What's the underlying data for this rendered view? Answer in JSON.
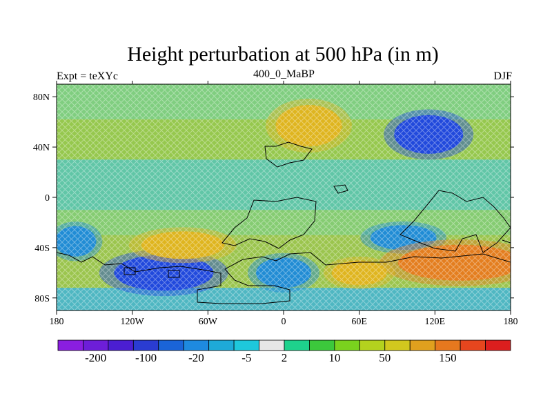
{
  "chart_data": {
    "type": "heatmap",
    "title": "Height perturbation at 500 hPa (in m)",
    "left_string": "Expt = teXYc",
    "center_string": "400_0_MaBP",
    "right_string": "DJF",
    "x_ticks": [
      "180",
      "120W",
      "60W",
      "0",
      "60E",
      "120E",
      "180"
    ],
    "x_tick_values": [
      -180,
      -120,
      -60,
      0,
      60,
      120,
      180
    ],
    "y_ticks": [
      "80N",
      "40N",
      "0",
      "40S",
      "80S"
    ],
    "y_tick_values": [
      80,
      40,
      0,
      -40,
      -80
    ],
    "xlim": [
      -180,
      180
    ],
    "ylim": [
      -90,
      90
    ],
    "colorbar": {
      "labels": [
        "-200",
        "-100",
        "-20",
        "-5",
        "2",
        "10",
        "50",
        "150"
      ],
      "colors": [
        "#8a1ee0",
        "#6d1ed8",
        "#4b1ed2",
        "#2a3cd2",
        "#1a64d8",
        "#1e8ae0",
        "#1eaad8",
        "#1ec8dc",
        "#e6e6e6",
        "#1ed28c",
        "#3cc83c",
        "#7ad21e",
        "#b4d21e",
        "#d2c81e",
        "#e0a01e",
        "#e6781e",
        "#e6461e",
        "#dc1e1e"
      ]
    },
    "anomaly_features": [
      {
        "label": "positive",
        "lon": 20,
        "lat": 57,
        "value": 50
      },
      {
        "label": "negative",
        "lon": 115,
        "lat": 50,
        "value": -100
      },
      {
        "label": "negative",
        "lon": -95,
        "lat": -60,
        "value": -100
      },
      {
        "label": "negative",
        "lon": -165,
        "lat": -35,
        "value": -20
      },
      {
        "label": "negative",
        "lon": 95,
        "lat": -32,
        "value": -20
      },
      {
        "label": "positive",
        "lon": -80,
        "lat": -38,
        "value": 50
      },
      {
        "label": "positive",
        "lon": 140,
        "lat": -52,
        "value": 150
      },
      {
        "label": "positive",
        "lon": 60,
        "lat": -60,
        "value": 50
      },
      {
        "label": "negative",
        "lon": 0,
        "lat": -60,
        "value": -20
      }
    ],
    "grid": false
  }
}
